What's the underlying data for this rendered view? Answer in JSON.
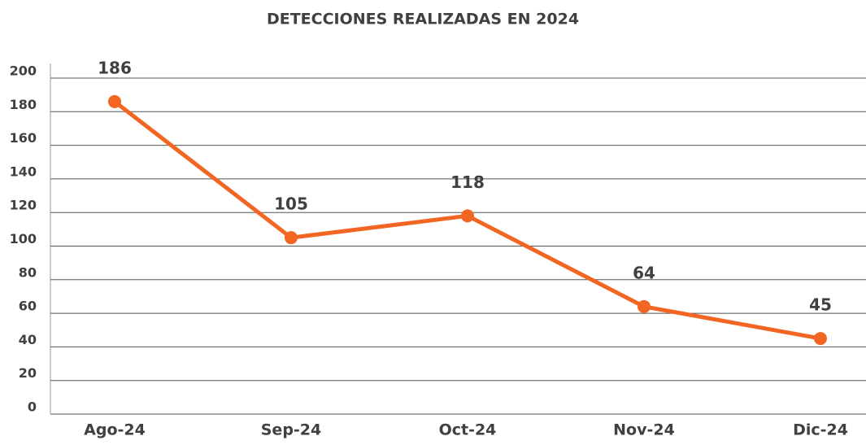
{
  "chart_data": {
    "type": "line",
    "title": "DETECCIONES REALIZADAS EN 2024",
    "categories": [
      "Ago-24",
      "Sep-24",
      "Oct-24",
      "Nov-24",
      "Dic-24"
    ],
    "values": [
      186,
      105,
      118,
      64,
      45
    ],
    "color": "#f26522",
    "ylim": [
      0,
      200
    ],
    "yticks": [
      0,
      20,
      40,
      60,
      80,
      100,
      120,
      140,
      160,
      180,
      200
    ],
    "grid": true
  }
}
